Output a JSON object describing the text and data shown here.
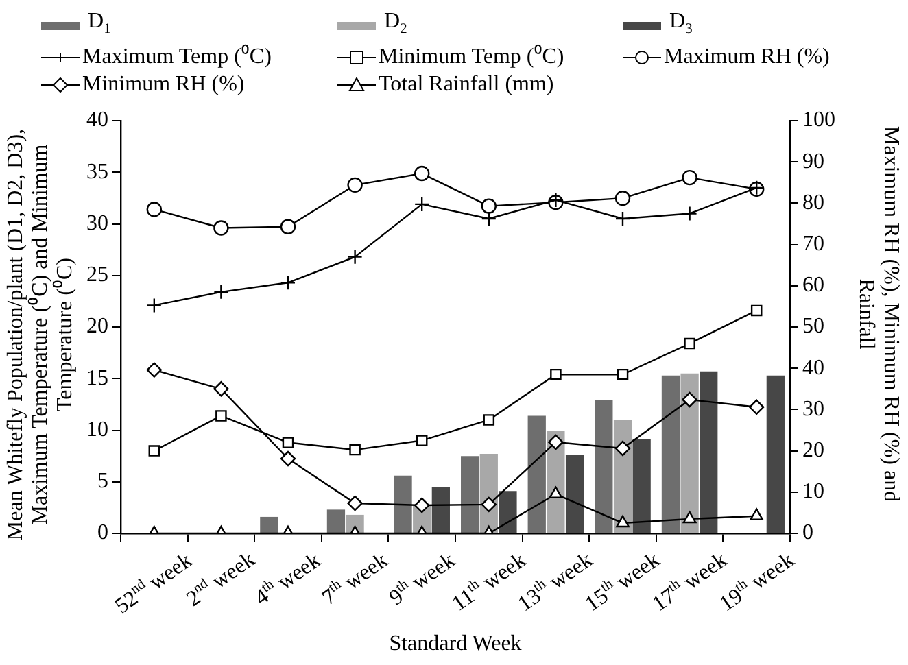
{
  "chart_data": {
    "type": "bar",
    "xlabel": "Standard Week",
    "ylabel": "Mean Whitefly Population/plant (D1, D2, D3), Maximum Temperature (⁰C) and Minimum Temperature (⁰C)",
    "y2label": "Maximum RH (%), Minimum RH (%) and Rainfall",
    "categories": [
      "52$^{nd}$ week",
      "2$^{nd}$ week",
      "4$^{th}$ week",
      "7$^{th}$ week",
      "9$^{th}$ week",
      "11$^{th}$ week",
      "13$^{th}$ week",
      "15$^{th}$ week",
      "17$^{th}$ week",
      "19$^{th}$ week"
    ],
    "series": [
      {
        "name": "D$_{1}$",
        "color": "#6e6e6e",
        "values": [
          null,
          null,
          1.6,
          2.3,
          5.6,
          7.5,
          11.4,
          12.9,
          15.3,
          null
        ]
      },
      {
        "name": "D$_{2}$",
        "color": "#a8a8a8",
        "values": [
          null,
          null,
          null,
          1.8,
          2.7,
          7.7,
          9.9,
          11.0,
          15.5,
          null
        ]
      },
      {
        "name": "D$_{3}$",
        "color": "#474747",
        "values": [
          null,
          null,
          null,
          null,
          4.5,
          4.1,
          7.6,
          9.1,
          15.7,
          15.3
        ]
      },
      {
        "name": "Maximum Temp (⁰C)",
        "type": "line",
        "marker": "cross",
        "color": "#000000",
        "values": [
          22.1,
          23.4,
          24.3,
          26.8,
          31.9,
          30.5,
          32.3,
          30.5,
          31.0,
          33.5
        ]
      },
      {
        "name": "Minimum Temp (⁰C)",
        "type": "line",
        "marker": "square",
        "color": "#000000",
        "values": [
          8.0,
          11.4,
          8.8,
          8.1,
          9.0,
          11.0,
          15.4,
          15.4,
          18.4,
          21.6
        ]
      },
      {
        "name": "Maximum RH (%)",
        "type": "line",
        "marker": "circle",
        "color": "#000000",
        "axis": "y2",
        "values": [
          78.5,
          74,
          74.3,
          84.4,
          87.2,
          79.3,
          80.2,
          81.2,
          86.2,
          83.4
        ]
      },
      {
        "name": "Minimum RH (%)",
        "type": "line",
        "marker": "diamond",
        "color": "#000000",
        "axis": "y2",
        "values": [
          39.6,
          35.0,
          18.1,
          7.3,
          6.8,
          7.0,
          22.1,
          20.6,
          32.4,
          30.6
        ]
      },
      {
        "name": "Total Rainfall (mm)",
        "type": "line",
        "marker": "triangle",
        "color": "#000000",
        "axis": "y2",
        "values": [
          0,
          0,
          0,
          0,
          0,
          0,
          9.5,
          2.5,
          3.5,
          4.2
        ]
      }
    ],
    "ylim": [
      0,
      40
    ],
    "yticks": [
      0,
      5,
      10,
      15,
      20,
      25,
      30,
      35,
      40
    ],
    "y2lim": [
      0,
      100
    ],
    "y2ticks": [
      0,
      10,
      20,
      30,
      40,
      50,
      60,
      70,
      80,
      90,
      100
    ],
    "grid": false,
    "legend": "top"
  }
}
